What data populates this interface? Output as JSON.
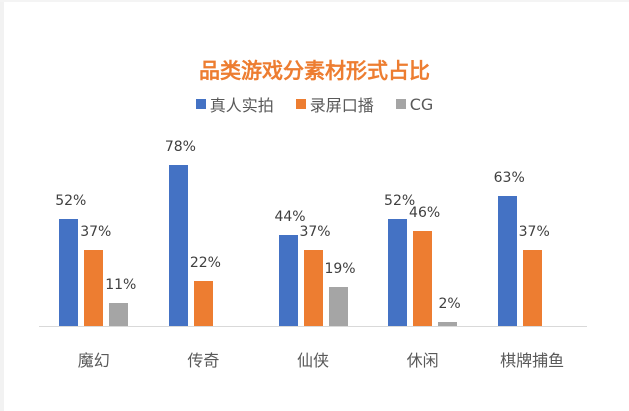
{
  "chart_data": {
    "type": "bar",
    "title": "品类游戏分素材形式占比",
    "xlabel": "",
    "ylabel": "",
    "ylim": [
      0,
      100
    ],
    "grid": false,
    "legend_position": "top",
    "categories": [
      "魔幻",
      "传奇",
      "仙侠",
      "休闲",
      "棋牌捕鱼"
    ],
    "series": [
      {
        "name": "真人实拍",
        "color": "#4472c4",
        "values": [
          52,
          78,
          44,
          52,
          63
        ],
        "labels": [
          "52%",
          "78%",
          "44%",
          "52%",
          "63%"
        ]
      },
      {
        "name": "录屏口播",
        "color": "#ed7d31",
        "values": [
          37,
          22,
          37,
          46,
          37
        ],
        "labels": [
          "37%",
          "22%",
          "37%",
          "46%",
          "37%"
        ]
      },
      {
        "name": "CG",
        "color": "#a5a5a5",
        "values": [
          11,
          null,
          19,
          2,
          null
        ],
        "labels": [
          "11%",
          "",
          "19%",
          "2%",
          ""
        ]
      }
    ]
  },
  "title": "品类游戏分素材形式占比",
  "legend": [
    {
      "label": "真人实拍",
      "color": "#4472c4"
    },
    {
      "label": "录屏口播",
      "color": "#ed7d31"
    },
    {
      "label": "CG",
      "color": "#a5a5a5"
    }
  ],
  "categories": [
    "魔幻",
    "传奇",
    "仙侠",
    "休闲",
    "棋牌捕鱼"
  ]
}
